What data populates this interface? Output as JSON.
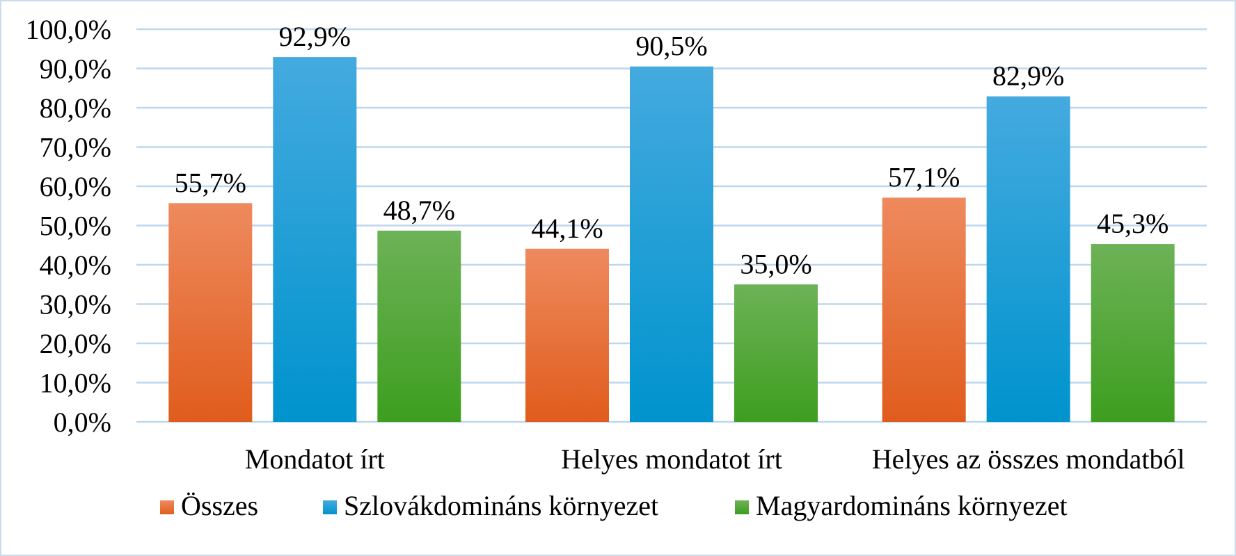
{
  "chart_data": {
    "type": "bar",
    "title": "",
    "xlabel": "",
    "ylabel": "",
    "categories": [
      "Mondatot írt",
      "Helyes mondatot írt",
      "Helyes az összes mondatból"
    ],
    "series": [
      {
        "name": "Összes",
        "values": [
          55.7,
          44.1,
          57.1
        ],
        "labels": [
          "55,7%",
          "44,1%",
          "57,1%"
        ],
        "color": "#ED7D31",
        "gradient": [
          "#EE8A5E",
          "#E05C1C"
        ]
      },
      {
        "name": "Szlovákdomináns környezet",
        "values": [
          92.9,
          90.5,
          82.9
        ],
        "labels": [
          "92,9%",
          "90,5%",
          "82,9%"
        ],
        "color": "#0FA0DC",
        "gradient": [
          "#44AADF",
          "#0093CD"
        ]
      },
      {
        "name": "Magyardomináns környezet",
        "values": [
          48.7,
          35.0,
          45.3
        ],
        "labels": [
          "48,7%",
          "35,0%",
          "45,3%"
        ],
        "color": "#4CAF2D",
        "gradient": [
          "#6DB257",
          "#3D9E1F"
        ]
      }
    ],
    "ylim": [
      0,
      100
    ],
    "yticks": [
      0,
      10,
      20,
      30,
      40,
      50,
      60,
      70,
      80,
      90,
      100
    ],
    "ytick_labels": [
      "0,0%",
      "10,0%",
      "20,0%",
      "30,0%",
      "40,0%",
      "50,0%",
      "60,0%",
      "70,0%",
      "80,0%",
      "90,0%",
      "100,0%"
    ],
    "grid": true,
    "grid_color": "#BDD7EE",
    "legend_position": "bottom",
    "border_color": "#C9DCEF"
  }
}
